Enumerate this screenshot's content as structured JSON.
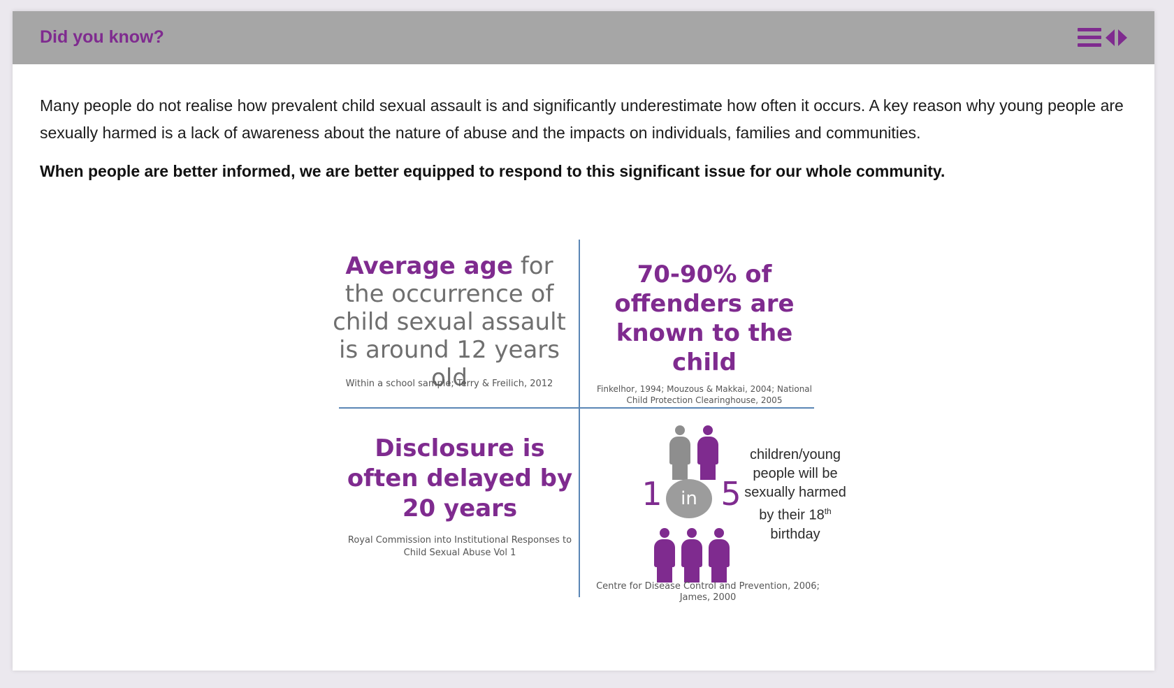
{
  "panel": {
    "title": "Did you know?",
    "icons": [
      "menu-icon",
      "left-arrow-icon",
      "right-arrow-icon"
    ]
  },
  "content": {
    "intro": "Many people do not realise how prevalent child sexual assault is and significantly underestimate how often it occurs. A key reason why young people are sexually harmed is a lack of awareness about the nature of abuse and the impacts on individuals, families and communities.",
    "emphasis": "When people are better informed, we are better equipped to respond to this significant issue for our whole community."
  },
  "infographic": {
    "q1": {
      "highlight": "Average age",
      "text": " for the occurrence of child sexual assault is around 12 years old",
      "source": "Within a school sample; Terry & Freilich, 2012"
    },
    "q2": {
      "text": "70-90% of offenders are known to the child",
      "source": "Finkelhor, 1994; Mouzous & Makkai, 2004; National Child Protection Clearinghouse, 2005"
    },
    "q3": {
      "text": "Disclosure is often delayed by 20 years",
      "source": "Royal Commission into Institutional Responses to Child Sexual Abuse Vol 1"
    },
    "q4": {
      "num1": "1",
      "in": "in",
      "num2": "5",
      "text": "children/young people will be sexually harmed by their 18",
      "sup": "th",
      "text_end": "birthday",
      "source": "Centre for Disease Control and Prevention, 2006; James, 2000",
      "figures_top": [
        "grey",
        "purple"
      ],
      "figures_bottom": [
        "purple",
        "purple",
        "purple"
      ]
    },
    "colors": {
      "accent": "#7f2b8f",
      "grey": "#8e8e8e",
      "divider": "#5a86b5",
      "header": "#a6a6a6"
    }
  }
}
